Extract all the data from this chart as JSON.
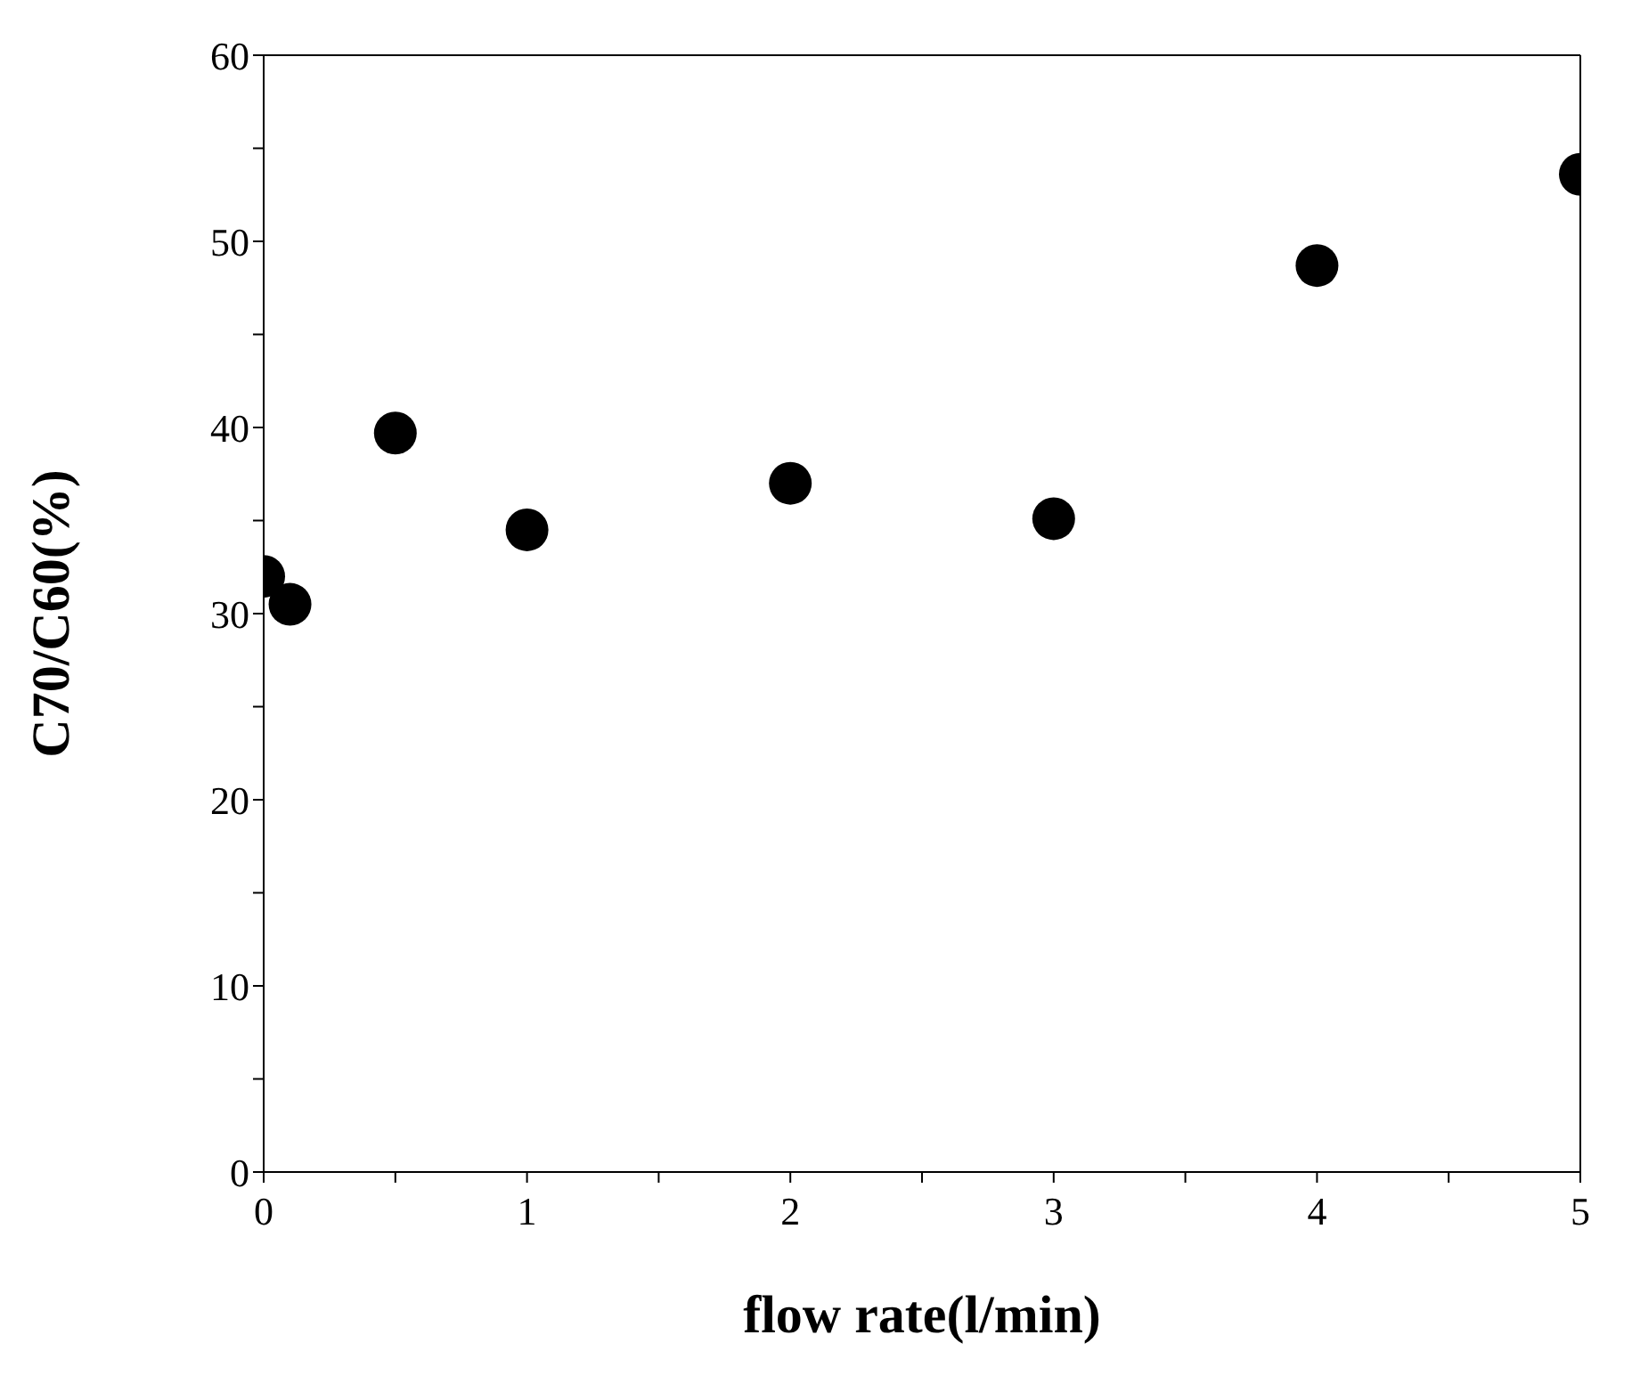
{
  "chart_data": {
    "type": "scatter",
    "xlabel": "flow rate(l/min)",
    "ylabel": "C70/C60(%)",
    "x": [
      0,
      0.1,
      0.5,
      1,
      2,
      3,
      4,
      5
    ],
    "series": [
      {
        "color": "#000000",
        "values": [
          32,
          30.5,
          39.7,
          34.5,
          37,
          35.1,
          48.7,
          53.6
        ]
      }
    ],
    "marker": "circle",
    "xlim": [
      0,
      5
    ],
    "xticks": [
      0,
      {
        "value": 0.5,
        "label": null
      },
      1,
      {
        "value": 1.5,
        "label": null
      },
      2,
      {
        "value": 2.5,
        "label": null
      },
      3,
      {
        "value": 3.5,
        "label": null
      },
      4,
      {
        "value": 4.5,
        "label": null
      },
      5
    ],
    "ylim": [
      0,
      60
    ],
    "yticks": [
      0,
      {
        "value": 5,
        "label": null
      },
      10,
      {
        "value": 15,
        "label": null
      },
      20,
      {
        "value": 25,
        "label": null
      },
      30,
      {
        "value": 35,
        "label": null
      },
      40,
      {
        "value": 45,
        "label": null
      },
      50,
      {
        "value": 55,
        "label": null
      },
      60
    ],
    "grid": false,
    "legend": false
  }
}
